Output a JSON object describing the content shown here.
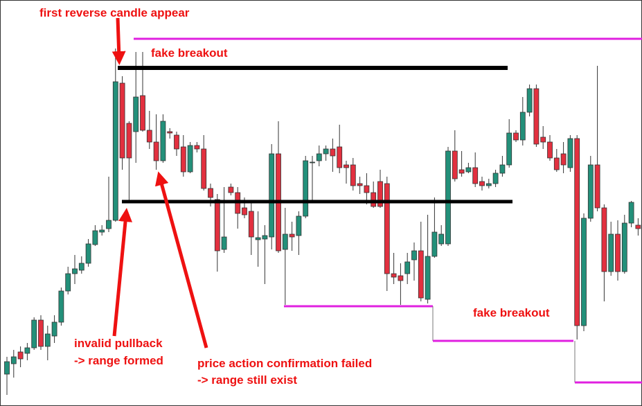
{
  "chart_data": {
    "type": "candlestick",
    "annotations": [
      "first reverse candle appear",
      "fake breakout",
      "fake breakout",
      "invalid pullback",
      "-> range formed",
      "price action confirmation failed",
      "-> range still exist"
    ],
    "up_color": "#23907a",
    "down_color": "#e2303f",
    "ylim": [
      0,
      586
    ],
    "open": [
      46,
      61,
      78,
      76,
      84,
      124,
      86,
      101,
      121,
      166,
      191,
      196,
      206,
      233,
      251,
      256,
      268,
      466,
      408,
      396,
      448,
      398,
      381,
      354,
      396,
      391,
      374,
      338,
      376,
      371,
      314,
      298,
      226,
      316,
      308,
      286,
      281,
      240,
      241,
      244,
      364,
      226,
      248,
      246,
      274,
      351,
      354,
      364,
      371,
      374,
      348,
      348,
      321,
      318,
      308,
      324,
      321,
      191,
      188,
      191,
      211,
      224,
      154,
      216,
      234,
      234,
      368,
      341,
      338,
      344,
      324,
      318,
      321,
      336,
      348,
      394,
      384,
      424,
      458,
      388,
      381,
      358,
      364,
      344,
      386,
      116,
      271,
      348,
      286,
      194,
      248,
      194,
      264,
      261
    ],
    "high": [
      71,
      81,
      86,
      91,
      128,
      131,
      116,
      131,
      171,
      201,
      218,
      216,
      241,
      261,
      261,
      331,
      516,
      476,
      411,
      511,
      511,
      426,
      421,
      421,
      401,
      396,
      391,
      381,
      381,
      391,
      321,
      306,
      316,
      321,
      316,
      301,
      296,
      281,
      261,
      378,
      411,
      286,
      266,
      281,
      361,
      361,
      376,
      376,
      386,
      406,
      354,
      358,
      331,
      336,
      324,
      341,
      331,
      221,
      206,
      221,
      236,
      266,
      276,
      301,
      261,
      374,
      398,
      368,
      351,
      366,
      331,
      328,
      341,
      361,
      414,
      398,
      446,
      464,
      464,
      404,
      391,
      371,
      381,
      391,
      391,
      278,
      361,
      491,
      291,
      266,
      268,
      276,
      296,
      271
    ],
    "low": [
      16,
      41,
      56,
      66,
      81,
      81,
      66,
      91,
      116,
      161,
      176,
      191,
      201,
      231,
      246,
      251,
      266,
      341,
      296,
      351,
      396,
      371,
      341,
      351,
      386,
      361,
      331,
      336,
      366,
      311,
      288,
      194,
      221,
      304,
      256,
      271,
      218,
      201,
      176,
      226,
      221,
      146,
      224,
      218,
      271,
      296,
      346,
      354,
      338,
      336,
      321,
      311,
      306,
      291,
      286,
      286,
      166,
      176,
      146,
      176,
      181,
      151,
      148,
      214,
      231,
      231,
      324,
      331,
      336,
      316,
      311,
      314,
      316,
      331,
      344,
      381,
      376,
      418,
      374,
      371,
      354,
      338,
      336,
      338,
      96,
      108,
      266,
      281,
      151,
      188,
      181,
      191,
      258,
      246
    ],
    "close": [
      64,
      71,
      68,
      84,
      124,
      86,
      104,
      121,
      166,
      191,
      198,
      206,
      234,
      253,
      254,
      268,
      468,
      358,
      358,
      446,
      398,
      381,
      354,
      411,
      394,
      371,
      338,
      376,
      371,
      314,
      301,
      224,
      244,
      308,
      278,
      276,
      244,
      243,
      246,
      364,
      224,
      248,
      244,
      274,
      354,
      352,
      364,
      371,
      361,
      344,
      344,
      318,
      318,
      308,
      288,
      288,
      191,
      186,
      181,
      208,
      224,
      156,
      216,
      251,
      248,
      368,
      328,
      336,
      344,
      321,
      318,
      321,
      336,
      348,
      394,
      384,
      424,
      458,
      378,
      381,
      358,
      341,
      348,
      386,
      116,
      271,
      348,
      286,
      194,
      248,
      194,
      264,
      294,
      256
    ]
  }
}
